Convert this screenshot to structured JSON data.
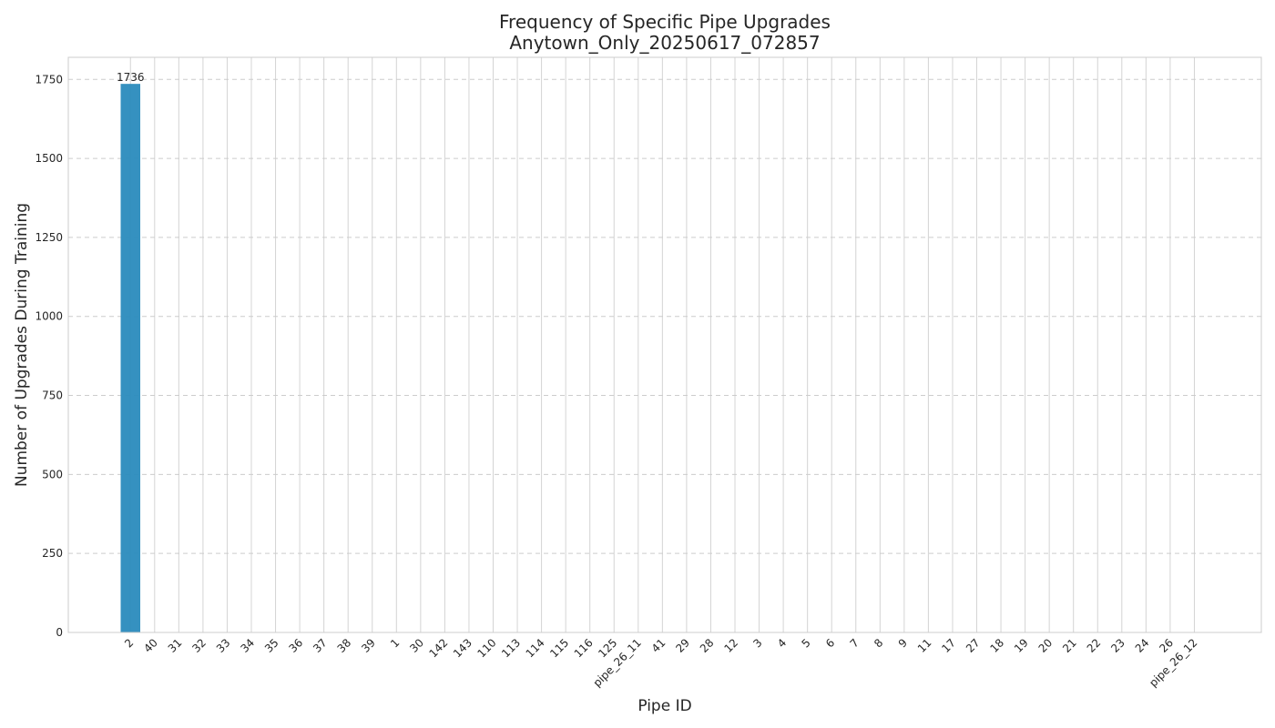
{
  "chart_data": {
    "type": "bar",
    "title": "Frequency of Specific Pipe Upgrades",
    "subtitle": "Anytown_Only_20250617_072857",
    "xlabel": "Pipe ID",
    "ylabel": "Number of Upgrades During Training",
    "categories": [
      "2",
      "40",
      "31",
      "32",
      "33",
      "34",
      "35",
      "36",
      "37",
      "38",
      "39",
      "1",
      "30",
      "142",
      "143",
      "110",
      "113",
      "114",
      "115",
      "116",
      "125",
      "pipe_26_11",
      "41",
      "29",
      "28",
      "12",
      "3",
      "4",
      "5",
      "6",
      "7",
      "8",
      "9",
      "11",
      "17",
      "27",
      "18",
      "19",
      "20",
      "21",
      "22",
      "23",
      "24",
      "26",
      "pipe_26_12"
    ],
    "values": [
      1736,
      0,
      0,
      0,
      0,
      0,
      0,
      0,
      0,
      0,
      0,
      0,
      0,
      0,
      0,
      0,
      0,
      0,
      0,
      0,
      0,
      0,
      0,
      0,
      0,
      0,
      0,
      0,
      0,
      0,
      0,
      0,
      0,
      0,
      0,
      0,
      0,
      0,
      0,
      0,
      0,
      0,
      0,
      0,
      0
    ],
    "data_labels": [
      {
        "category": "2",
        "text": "1736"
      }
    ],
    "ylim": [
      0,
      1820
    ],
    "yticks": [
      0,
      250,
      500,
      750,
      1000,
      1250,
      1500,
      1750
    ],
    "bar_color": "#2a8bbd",
    "grid": true,
    "legend": false
  }
}
